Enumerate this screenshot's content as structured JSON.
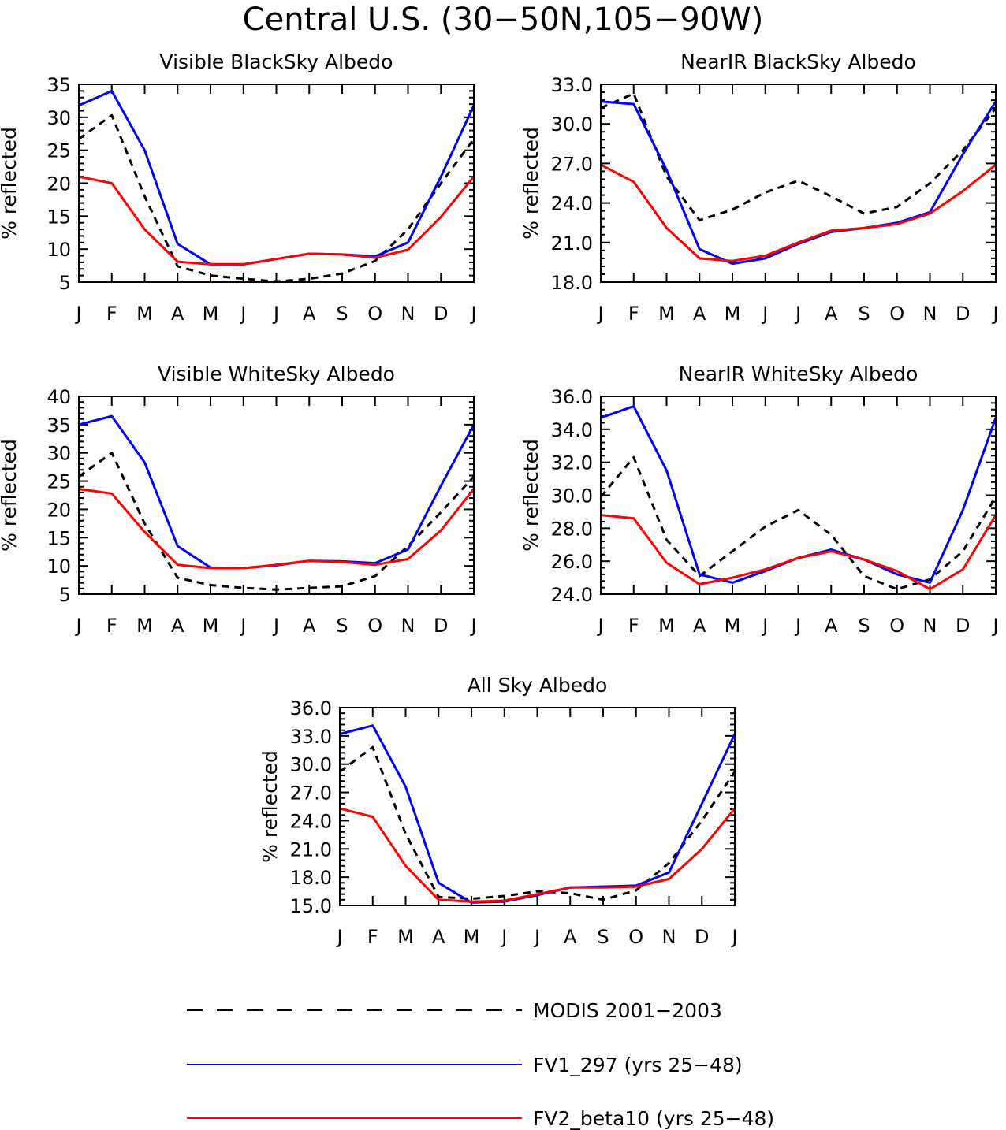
{
  "title": "Central U.S. (30−50N,105−90W)",
  "legend": [
    {
      "name": "MODIS 2001−2003",
      "color": "#000000",
      "dash": true
    },
    {
      "name": "FV1_297 (yrs 25−48)",
      "color": "#0000ff",
      "dash": false
    },
    {
      "name": "FV2_beta10 (yrs 25−48)",
      "color": "#ff0000",
      "dash": false
    }
  ],
  "chart_data": [
    {
      "type": "line",
      "title": "Visible BlackSky Albedo",
      "ylabel": "% reflected",
      "xlabel": "",
      "categories": [
        "J",
        "F",
        "M",
        "A",
        "M",
        "J",
        "J",
        "A",
        "S",
        "O",
        "N",
        "D",
        "J"
      ],
      "ylim": [
        5,
        35
      ],
      "yticks": [
        5,
        10,
        15,
        20,
        25,
        30,
        35
      ],
      "ytick_labels": [
        "5",
        "10",
        "15",
        "20",
        "25",
        "30",
        "35"
      ],
      "series": [
        {
          "name": "MODIS 2001−2003",
          "values": [
            26.7,
            30.3,
            18.0,
            7.4,
            6.0,
            5.5,
            5.1,
            5.5,
            6.3,
            8.2,
            13.0,
            20.0,
            26.7
          ]
        },
        {
          "name": "FV1_297 (yrs 25−48)",
          "values": [
            31.8,
            34.0,
            25.0,
            10.8,
            7.7,
            7.7,
            8.5,
            9.3,
            9.2,
            8.9,
            11.0,
            21.0,
            31.8
          ]
        },
        {
          "name": "FV2_beta10 (yrs 25−48)",
          "values": [
            21.0,
            20.0,
            13.0,
            8.1,
            7.7,
            7.7,
            8.5,
            9.3,
            9.2,
            8.7,
            9.9,
            14.9,
            21.0
          ]
        }
      ]
    },
    {
      "type": "line",
      "title": "NearIR BlackSky Albedo",
      "ylabel": "% reflected",
      "xlabel": "",
      "categories": [
        "J",
        "F",
        "M",
        "A",
        "M",
        "J",
        "J",
        "A",
        "S",
        "O",
        "N",
        "D",
        "J"
      ],
      "ylim": [
        18,
        33
      ],
      "yticks": [
        18,
        21,
        24,
        27,
        30,
        33
      ],
      "ytick_labels": [
        "18.0",
        "21.0",
        "24.0",
        "27.0",
        "30.0",
        "33.0"
      ],
      "series": [
        {
          "name": "MODIS 2001−2003",
          "values": [
            31.2,
            32.3,
            26.0,
            22.7,
            23.5,
            24.8,
            25.7,
            24.5,
            23.2,
            23.7,
            25.5,
            28.0,
            31.2
          ]
        },
        {
          "name": "FV1_297 (yrs 25−48)",
          "values": [
            31.7,
            31.5,
            26.5,
            20.5,
            19.4,
            19.8,
            20.9,
            21.8,
            22.1,
            22.5,
            23.3,
            27.7,
            31.7
          ]
        },
        {
          "name": "FV2_beta10 (yrs 25−48)",
          "values": [
            26.9,
            25.6,
            22.1,
            19.8,
            19.6,
            20.0,
            21.0,
            21.9,
            22.1,
            22.4,
            23.2,
            24.9,
            26.9
          ]
        }
      ]
    },
    {
      "type": "line",
      "title": "Visible WhiteSky Albedo",
      "ylabel": "% reflected",
      "xlabel": "",
      "categories": [
        "J",
        "F",
        "M",
        "A",
        "M",
        "J",
        "J",
        "A",
        "S",
        "O",
        "N",
        "D",
        "J"
      ],
      "ylim": [
        5,
        40
      ],
      "yticks": [
        5,
        10,
        15,
        20,
        25,
        30,
        35,
        40
      ],
      "ytick_labels": [
        "5",
        "10",
        "15",
        "20",
        "25",
        "30",
        "35",
        "40"
      ],
      "series": [
        {
          "name": "MODIS 2001−2003",
          "values": [
            25.8,
            30.0,
            17.5,
            7.9,
            6.6,
            6.1,
            5.8,
            6.1,
            6.4,
            8.2,
            13.5,
            19.5,
            25.8
          ]
        },
        {
          "name": "FV1_297 (yrs 25−48)",
          "values": [
            35.0,
            36.5,
            28.3,
            13.5,
            9.7,
            9.6,
            10.1,
            10.9,
            10.8,
            10.5,
            12.9,
            24.2,
            35.0
          ]
        },
        {
          "name": "FV2_beta10 (yrs 25−48)",
          "values": [
            23.6,
            22.8,
            16.0,
            10.2,
            9.6,
            9.6,
            10.2,
            10.9,
            10.7,
            10.2,
            11.2,
            16.3,
            23.6
          ]
        }
      ]
    },
    {
      "type": "line",
      "title": "NearIR WhiteSky Albedo",
      "ylabel": "% reflected",
      "xlabel": "",
      "categories": [
        "J",
        "F",
        "M",
        "A",
        "M",
        "J",
        "J",
        "A",
        "S",
        "O",
        "N",
        "D",
        "J"
      ],
      "ylim": [
        24,
        36
      ],
      "yticks": [
        24,
        26,
        28,
        30,
        32,
        34,
        36
      ],
      "ytick_labels": [
        "24.0",
        "26.0",
        "28.0",
        "30.0",
        "32.0",
        "34.0",
        "36.0"
      ],
      "series": [
        {
          "name": "MODIS 2001−2003",
          "values": [
            29.9,
            32.3,
            27.3,
            25.1,
            26.6,
            28.1,
            29.1,
            27.6,
            25.1,
            24.3,
            24.9,
            26.6,
            29.9
          ]
        },
        {
          "name": "FV1_297 (yrs 25−48)",
          "values": [
            34.7,
            35.4,
            31.5,
            25.2,
            24.7,
            25.4,
            26.2,
            26.7,
            26.1,
            25.2,
            24.7,
            29.1,
            34.7
          ]
        },
        {
          "name": "FV2_beta10 (yrs 25−48)",
          "values": [
            28.8,
            28.6,
            25.9,
            24.6,
            25.0,
            25.5,
            26.2,
            26.6,
            26.1,
            25.4,
            24.3,
            25.5,
            28.8
          ]
        }
      ]
    },
    {
      "type": "line",
      "title": "All Sky Albedo",
      "ylabel": "% reflected",
      "xlabel": "",
      "categories": [
        "J",
        "F",
        "M",
        "A",
        "M",
        "J",
        "J",
        "A",
        "S",
        "O",
        "N",
        "D",
        "J"
      ],
      "ylim": [
        15,
        36
      ],
      "yticks": [
        15,
        18,
        21,
        24,
        27,
        30,
        33,
        36
      ],
      "ytick_labels": [
        "15.0",
        "18.0",
        "21.0",
        "24.0",
        "27.0",
        "30.0",
        "33.0",
        "36.0"
      ],
      "series": [
        {
          "name": "MODIS 2001−2003",
          "values": [
            29.2,
            31.8,
            22.6,
            15.9,
            15.7,
            16.0,
            16.5,
            16.3,
            15.6,
            16.6,
            19.5,
            24.0,
            29.2
          ]
        },
        {
          "name": "FV1_297 (yrs 25−48)",
          "values": [
            33.2,
            34.1,
            27.6,
            17.4,
            15.3,
            15.4,
            16.1,
            16.9,
            17.0,
            17.1,
            18.5,
            25.8,
            33.2
          ]
        },
        {
          "name": "FV2_beta10 (yrs 25−48)",
          "values": [
            25.3,
            24.4,
            19.2,
            15.6,
            15.4,
            15.5,
            16.2,
            16.9,
            16.9,
            17.0,
            17.8,
            21.0,
            25.3
          ]
        }
      ]
    }
  ]
}
